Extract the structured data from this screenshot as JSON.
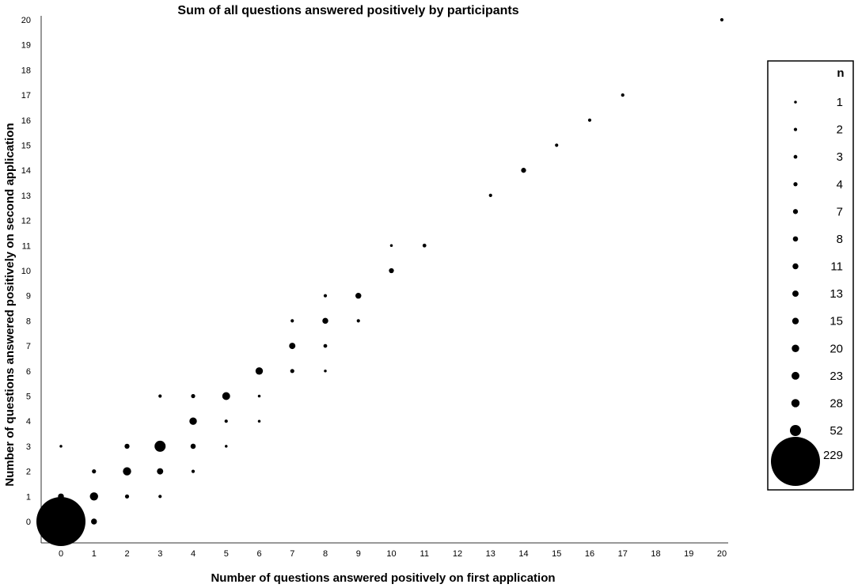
{
  "chart_data": {
    "type": "scatter",
    "title": "Sum of all questions answered positively by participants",
    "xlabel": "Number of questions answered positively on first application",
    "ylabel": "Number of questions answered positively on second application",
    "xlim": [
      0,
      20
    ],
    "ylim": [
      0,
      20
    ],
    "x_ticks": [
      "0",
      "1",
      "2",
      "3",
      "4",
      "5",
      "6",
      "7",
      "8",
      "9",
      "10",
      "11",
      "12",
      "13",
      "14",
      "15",
      "16",
      "17",
      "18",
      "19",
      "20"
    ],
    "y_ticks": [
      "0",
      "1",
      "2",
      "3",
      "4",
      "5",
      "6",
      "7",
      "8",
      "9",
      "10",
      "11",
      "12",
      "13",
      "14",
      "15",
      "16",
      "17",
      "18",
      "19",
      "20"
    ],
    "grid": false,
    "legend": {
      "title": "n",
      "placement": "right",
      "sizes": [
        1,
        2,
        3,
        4,
        7,
        8,
        11,
        13,
        15,
        20,
        23,
        28,
        52,
        229
      ]
    },
    "points": [
      {
        "x": 0,
        "y": 0,
        "n": 229
      },
      {
        "x": 0,
        "y": 1,
        "n": 11
      },
      {
        "x": 0,
        "y": 3,
        "n": 1
      },
      {
        "x": 1,
        "y": 0,
        "n": 11
      },
      {
        "x": 1,
        "y": 1,
        "n": 28
      },
      {
        "x": 1,
        "y": 2,
        "n": 4
      },
      {
        "x": 2,
        "y": 1,
        "n": 4
      },
      {
        "x": 2,
        "y": 2,
        "n": 28
      },
      {
        "x": 2,
        "y": 3,
        "n": 7
      },
      {
        "x": 3,
        "y": 1,
        "n": 2
      },
      {
        "x": 3,
        "y": 2,
        "n": 13
      },
      {
        "x": 3,
        "y": 3,
        "n": 52
      },
      {
        "x": 3,
        "y": 5,
        "n": 2
      },
      {
        "x": 4,
        "y": 2,
        "n": 2
      },
      {
        "x": 4,
        "y": 3,
        "n": 8
      },
      {
        "x": 4,
        "y": 4,
        "n": 20
      },
      {
        "x": 4,
        "y": 5,
        "n": 4
      },
      {
        "x": 5,
        "y": 3,
        "n": 1
      },
      {
        "x": 5,
        "y": 4,
        "n": 2
      },
      {
        "x": 5,
        "y": 5,
        "n": 23
      },
      {
        "x": 6,
        "y": 4,
        "n": 1
      },
      {
        "x": 6,
        "y": 5,
        "n": 1
      },
      {
        "x": 6,
        "y": 6,
        "n": 20
      },
      {
        "x": 7,
        "y": 6,
        "n": 4
      },
      {
        "x": 7,
        "y": 7,
        "n": 13
      },
      {
        "x": 7,
        "y": 8,
        "n": 2
      },
      {
        "x": 8,
        "y": 6,
        "n": 1
      },
      {
        "x": 8,
        "y": 7,
        "n": 3
      },
      {
        "x": 8,
        "y": 8,
        "n": 11
      },
      {
        "x": 8,
        "y": 9,
        "n": 2
      },
      {
        "x": 9,
        "y": 8,
        "n": 2
      },
      {
        "x": 9,
        "y": 9,
        "n": 11
      },
      {
        "x": 10,
        "y": 10,
        "n": 7
      },
      {
        "x": 10,
        "y": 11,
        "n": 1
      },
      {
        "x": 11,
        "y": 11,
        "n": 3
      },
      {
        "x": 13,
        "y": 13,
        "n": 2
      },
      {
        "x": 14,
        "y": 14,
        "n": 7
      },
      {
        "x": 15,
        "y": 15,
        "n": 2
      },
      {
        "x": 16,
        "y": 16,
        "n": 2
      },
      {
        "x": 17,
        "y": 17,
        "n": 2
      },
      {
        "x": 20,
        "y": 20,
        "n": 2
      }
    ]
  }
}
